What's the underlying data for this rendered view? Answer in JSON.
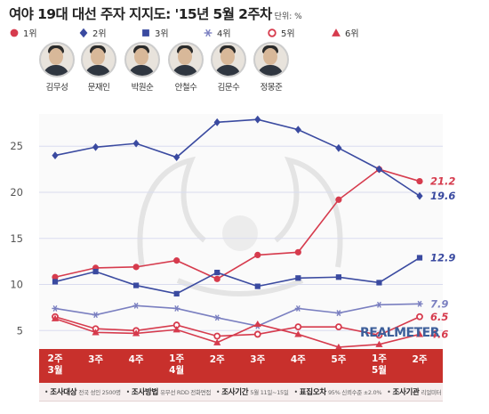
{
  "header": {
    "title": "여야 19대 대선 주자 지지도: '15년 5월 2주차",
    "unit": "단위: %"
  },
  "legend": [
    {
      "label": "1위",
      "marker": "circle-filled",
      "color": "#d63b4d"
    },
    {
      "label": "2위",
      "marker": "diamond-filled",
      "color": "#3a4aa0"
    },
    {
      "label": "3위",
      "marker": "square-filled",
      "color": "#3a4aa0"
    },
    {
      "label": "4위",
      "marker": "asterisk",
      "color": "#7a7fc0"
    },
    {
      "label": "5위",
      "marker": "circle-open",
      "color": "#d63b4d"
    },
    {
      "label": "6위",
      "marker": "triangle-filled",
      "color": "#d63b4d"
    }
  ],
  "candidates": [
    "김무성",
    "문재인",
    "박원순",
    "안철수",
    "김문수",
    "정몽준"
  ],
  "brand": "REALMETER",
  "footer": [
    {
      "label": "조사대상",
      "value": "전국 성인 2500명"
    },
    {
      "label": "조사방법",
      "value": "유무선 RDD 전화면접"
    },
    {
      "label": "조사기간",
      "value": "5월 11일~15일"
    },
    {
      "label": "표집오차",
      "value": "95% 신뢰수준 ±2.0%"
    },
    {
      "label": "조사기관",
      "value": "리얼미터"
    }
  ],
  "chart_data": {
    "type": "line",
    "title": "여야 19대 대선 주자 지지도: '15년 5월 2주차",
    "x_labels": [
      [
        "2주",
        "3월"
      ],
      [
        "3주"
      ],
      [
        "4주"
      ],
      [
        "1주",
        "4월"
      ],
      [
        "2주"
      ],
      [
        "3주"
      ],
      [
        "4주"
      ],
      [
        "5주"
      ],
      [
        "1주",
        "5월"
      ],
      [
        "2주"
      ]
    ],
    "ylim": [
      3,
      28.5
    ],
    "yticks": [
      5,
      10,
      15,
      20,
      25
    ],
    "grid": true,
    "series": [
      {
        "rank": "1위",
        "color": "#d63b4d",
        "marker": "circle-filled",
        "values": [
          10.8,
          11.8,
          11.9,
          12.6,
          10.6,
          13.2,
          13.5,
          19.2,
          22.5,
          21.2
        ],
        "end_label": "21.2"
      },
      {
        "rank": "2위",
        "color": "#3a4aa0",
        "marker": "diamond-filled",
        "values": [
          24.0,
          24.9,
          25.3,
          23.8,
          27.6,
          27.9,
          26.8,
          24.8,
          22.5,
          19.6
        ],
        "end_label": "19.6"
      },
      {
        "rank": "3위",
        "color": "#3a4aa0",
        "marker": "square-filled",
        "values": [
          10.3,
          11.4,
          9.9,
          9.0,
          11.3,
          9.8,
          10.7,
          10.8,
          10.2,
          12.9
        ],
        "end_label": "12.9"
      },
      {
        "rank": "4위",
        "color": "#7a7fc0",
        "marker": "asterisk",
        "values": [
          7.4,
          6.7,
          7.7,
          7.4,
          6.4,
          5.5,
          7.4,
          6.9,
          7.8,
          7.9
        ],
        "end_label": "7.9"
      },
      {
        "rank": "5위",
        "color": "#d63b4d",
        "marker": "circle-open",
        "values": [
          6.5,
          5.2,
          5.0,
          5.6,
          4.4,
          4.6,
          5.4,
          5.4,
          4.5,
          6.5
        ],
        "end_label": "6.5"
      },
      {
        "rank": "6위",
        "color": "#d63b4d",
        "marker": "triangle-filled",
        "values": [
          6.3,
          4.8,
          4.7,
          5.1,
          3.7,
          5.7,
          4.6,
          3.2,
          3.5,
          4.6
        ],
        "end_label": "4.6"
      }
    ]
  }
}
